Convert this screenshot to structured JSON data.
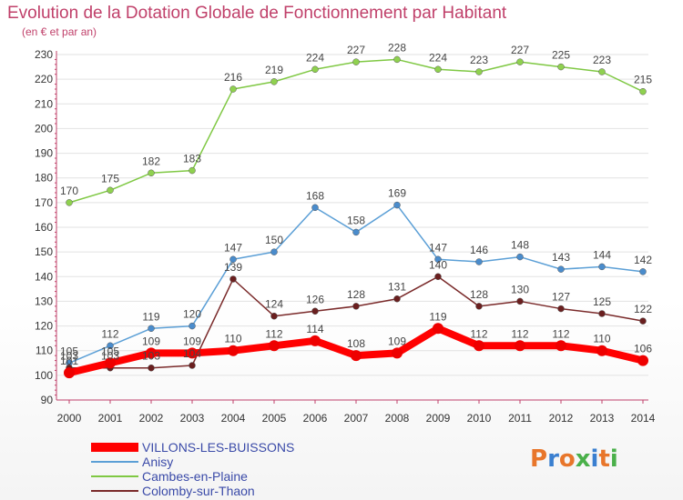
{
  "title": "Evolution de la Dotation Globale de Fonctionnement par Habitant",
  "subtitle": "(en € et par an)",
  "logo": {
    "text": "Proxiti",
    "letters": [
      {
        "ch": "P",
        "color": "#e8762b"
      },
      {
        "ch": "r",
        "color": "#3a7fd0"
      },
      {
        "ch": "o",
        "color": "#e8762b"
      },
      {
        "ch": "x",
        "color": "#4ab04a"
      },
      {
        "ch": "i",
        "color": "#3a7fd0"
      },
      {
        "ch": "t",
        "color": "#e8762b"
      },
      {
        "ch": "i",
        "color": "#4ab04a"
      }
    ]
  },
  "chart_data": {
    "type": "line",
    "x": [
      2000,
      2001,
      2002,
      2003,
      2004,
      2005,
      2006,
      2007,
      2008,
      2009,
      2010,
      2011,
      2012,
      2013,
      2014
    ],
    "ylim": [
      90,
      230
    ],
    "yticks": [
      90,
      100,
      110,
      120,
      130,
      140,
      150,
      160,
      170,
      180,
      190,
      200,
      210,
      220,
      230
    ],
    "grid": "horizontal",
    "legend": "bottom-left",
    "series": [
      {
        "name": "Cambes-en-Plaine",
        "color": "#7fc843",
        "marker": "#8fd14f",
        "values": [
          170,
          175,
          182,
          183,
          216,
          219,
          224,
          227,
          228,
          224,
          223,
          227,
          225,
          223,
          215
        ]
      },
      {
        "name": "Anisy",
        "color": "#5b9fd6",
        "marker": "#4a8ccc",
        "values": [
          105,
          112,
          119,
          120,
          147,
          150,
          168,
          158,
          169,
          147,
          146,
          148,
          143,
          144,
          142
        ]
      },
      {
        "name": "Colomby-sur-Thaon",
        "color": "#7a2a2a",
        "marker": "#6a1f1f",
        "values": [
          103,
          103,
          103,
          104,
          139,
          124,
          126,
          128,
          131,
          140,
          128,
          130,
          127,
          125,
          122
        ]
      },
      {
        "name": "VILLONS-LES-BUISSONS",
        "color": "#ff0000",
        "marker": "#ee0000",
        "values": [
          101,
          105,
          109,
          109,
          110,
          112,
          114,
          108,
          109,
          119,
          112,
          112,
          112,
          110,
          106
        ]
      }
    ],
    "legend_order": [
      "VILLONS-LES-BUISSONS",
      "Anisy",
      "Cambes-en-Plaine",
      "Colomby-sur-Thaon"
    ]
  }
}
